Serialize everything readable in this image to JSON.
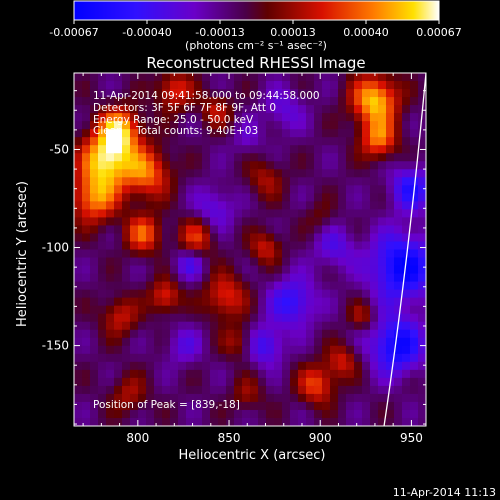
{
  "colorbar": {
    "ticks": [
      "-0.00067",
      "-0.00040",
      "-0.00013",
      "0.00013",
      "0.00040",
      "0.00067"
    ],
    "unit_label": "(photons cm⁻² s⁻¹ asec⁻²)"
  },
  "plot": {
    "title": "Reconstructed RHESSI Image",
    "annotations": [
      "11-Apr-2014 09:41:58.000 to 09:44:58.000",
      "Detectors: 3F 5F 6F 7F 8F 9F, Att 0",
      "Energy Range: 25.0 - 50.0 keV",
      "Clean    Total counts: 9.40E+03"
    ],
    "peak_label": "Position of Peak = [839,-18]",
    "timestamp": "11-Apr-2014 11:13"
  },
  "chart_data": {
    "type": "heatmap",
    "title": "Reconstructed RHESSI Image",
    "xlabel": "Heliocentric X (arcsec)",
    "ylabel": "Heliocentric Y (arcsec)",
    "xlim": [
      765,
      958
    ],
    "ylim": [
      -191,
      -11
    ],
    "xticks": [
      800,
      850,
      900,
      950
    ],
    "yticks": [
      -50,
      -100,
      -150
    ],
    "xtick_labels": [
      "800",
      "850",
      "900",
      "950"
    ],
    "ytick_labels": [
      "-50",
      "-100",
      "-150"
    ],
    "colorbar_range": [
      -0.00067,
      0.00067
    ],
    "peak_position": [
      839,
      -18
    ],
    "limb": [
      [
        958,
        -11
      ],
      [
        948,
        -110
      ],
      [
        935,
        -191
      ]
    ],
    "blobs": [
      {
        "x": 783,
        "y": -55,
        "v": 1.0,
        "s": 10
      },
      {
        "x": 790,
        "y": -40,
        "v": 0.85,
        "s": 8
      },
      {
        "x": 776,
        "y": -75,
        "v": 0.75,
        "s": 9
      },
      {
        "x": 805,
        "y": -62,
        "v": 0.7,
        "s": 9
      },
      {
        "x": 803,
        "y": -93,
        "v": 0.65,
        "s": 7
      },
      {
        "x": 815,
        "y": -125,
        "v": 0.55,
        "s": 6
      },
      {
        "x": 790,
        "y": -135,
        "v": 0.45,
        "s": 7
      },
      {
        "x": 820,
        "y": -20,
        "v": 0.55,
        "s": 7
      },
      {
        "x": 843,
        "y": -30,
        "v": 0.4,
        "s": 6
      },
      {
        "x": 832,
        "y": -95,
        "v": 0.55,
        "s": 7
      },
      {
        "x": 848,
        "y": -125,
        "v": 0.55,
        "s": 8
      },
      {
        "x": 870,
        "y": -100,
        "v": 0.45,
        "s": 6
      },
      {
        "x": 855,
        "y": -148,
        "v": 0.35,
        "s": 6
      },
      {
        "x": 870,
        "y": -65,
        "v": 0.35,
        "s": 7
      },
      {
        "x": 900,
        "y": -85,
        "v": 0.2,
        "s": 6
      },
      {
        "x": 898,
        "y": -170,
        "v": 0.6,
        "s": 7
      },
      {
        "x": 912,
        "y": -158,
        "v": 0.45,
        "s": 6
      },
      {
        "x": 930,
        "y": -25,
        "v": 0.95,
        "s": 9
      },
      {
        "x": 932,
        "y": -45,
        "v": 0.7,
        "s": 7
      },
      {
        "x": 923,
        "y": -135,
        "v": 0.35,
        "s": 5
      },
      {
        "x": 860,
        "y": -175,
        "v": 0.3,
        "s": 6
      },
      {
        "x": 795,
        "y": -175,
        "v": 0.35,
        "s": 7
      },
      {
        "x": 842,
        "y": -80,
        "v": -0.35,
        "s": 8
      },
      {
        "x": 885,
        "y": -128,
        "v": -0.55,
        "s": 9
      },
      {
        "x": 870,
        "y": -150,
        "v": -0.5,
        "s": 7
      },
      {
        "x": 828,
        "y": -108,
        "v": -0.4,
        "s": 6
      },
      {
        "x": 908,
        "y": -100,
        "v": -0.35,
        "s": 8
      },
      {
        "x": 880,
        "y": -30,
        "v": -0.3,
        "s": 8
      },
      {
        "x": 860,
        "y": -45,
        "v": -0.2,
        "s": 6
      },
      {
        "x": 825,
        "y": -150,
        "v": -0.3,
        "s": 7
      },
      {
        "x": 945,
        "y": -110,
        "v": -0.85,
        "s": 12
      },
      {
        "x": 942,
        "y": -150,
        "v": -0.8,
        "s": 10
      },
      {
        "x": 950,
        "y": -70,
        "v": -0.6,
        "s": 8
      }
    ]
  }
}
